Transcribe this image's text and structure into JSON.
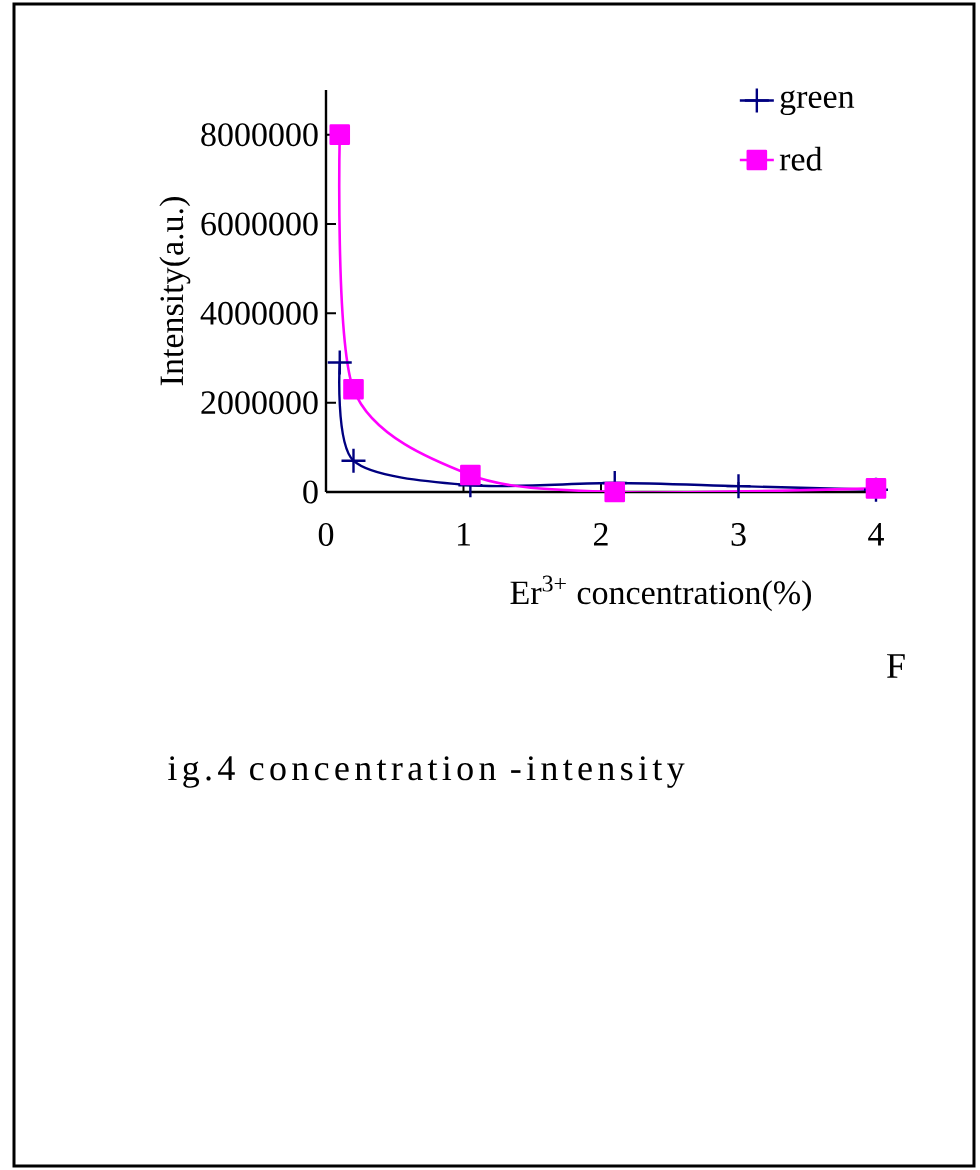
{
  "chart_data": {
    "type": "line",
    "xlabel": "Er$^{3+}$ concentration(%)",
    "ylabel": "Intensity(a.u.)",
    "annotations": [
      "F",
      "ig.4 concentration -intensity"
    ],
    "xlim": [
      0,
      4
    ],
    "xticks": [
      0,
      1,
      2,
      3,
      4
    ],
    "ylim": [
      0,
      9000000
    ],
    "yticks": [
      0,
      2000000,
      4000000,
      6000000,
      8000000
    ],
    "grid": false,
    "legend": "top right",
    "series": [
      {
        "name": "green",
        "color": "#000080",
        "marker": "cross",
        "x": [
          0.1,
          0.2,
          1.05,
          2.1,
          3,
          4
        ],
        "values": [
          2900000,
          700000,
          150000,
          200000,
          130000,
          50000
        ]
      },
      {
        "name": "red",
        "color": "#ff00ff",
        "marker": "square",
        "x": [
          0.1,
          0.2,
          1.05,
          2.1,
          4
        ],
        "values": [
          8000000,
          2300000,
          380000,
          0,
          80000
        ]
      }
    ]
  }
}
